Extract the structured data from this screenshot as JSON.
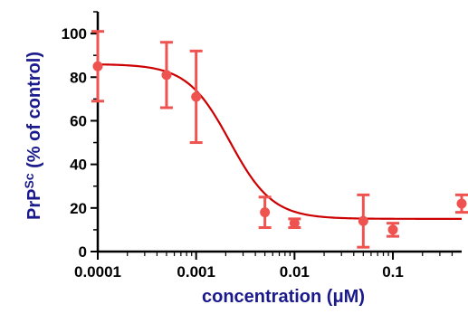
{
  "chart_data": {
    "type": "scatter",
    "xlabel": "concentration (μM)",
    "ylabel_main": "PrP",
    "ylabel_sup": "Sc",
    "ylabel_rest": " (% of control)",
    "x_scale": "log",
    "xlim": [
      0.0001,
      0.5
    ],
    "ylim": [
      0,
      110
    ],
    "x_ticks": [
      {
        "value": 0.0001,
        "label": "0.0001"
      },
      {
        "value": 0.001,
        "label": "0.001"
      },
      {
        "value": 0.01,
        "label": "0.01"
      },
      {
        "value": 0.1,
        "label": "0.1"
      }
    ],
    "y_ticks": [
      {
        "value": 0,
        "label": "0"
      },
      {
        "value": 20,
        "label": "20"
      },
      {
        "value": 40,
        "label": "40"
      },
      {
        "value": 60,
        "label": "60"
      },
      {
        "value": 80,
        "label": "80"
      },
      {
        "value": 100,
        "label": "100"
      }
    ],
    "points": [
      {
        "x": 0.0001,
        "y": 85,
        "err": 16
      },
      {
        "x": 0.0005,
        "y": 81,
        "err": 15
      },
      {
        "x": 0.001,
        "y": 71,
        "err": 21
      },
      {
        "x": 0.005,
        "y": 18,
        "err": 7
      },
      {
        "x": 0.01,
        "y": 13,
        "err": 2
      },
      {
        "x": 0.05,
        "y": 14,
        "err": 12
      },
      {
        "x": 0.1,
        "y": 10,
        "err": 3
      },
      {
        "x": 0.5,
        "y": 22,
        "err": 4
      }
    ],
    "fit": {
      "top": 86,
      "bottom": 15,
      "ic50": 0.0022,
      "hill": 2.0
    },
    "colors": {
      "points": "#ef5350",
      "fit": "#cc0000",
      "axis": "#000000",
      "title": "#1a1a8c"
    }
  }
}
